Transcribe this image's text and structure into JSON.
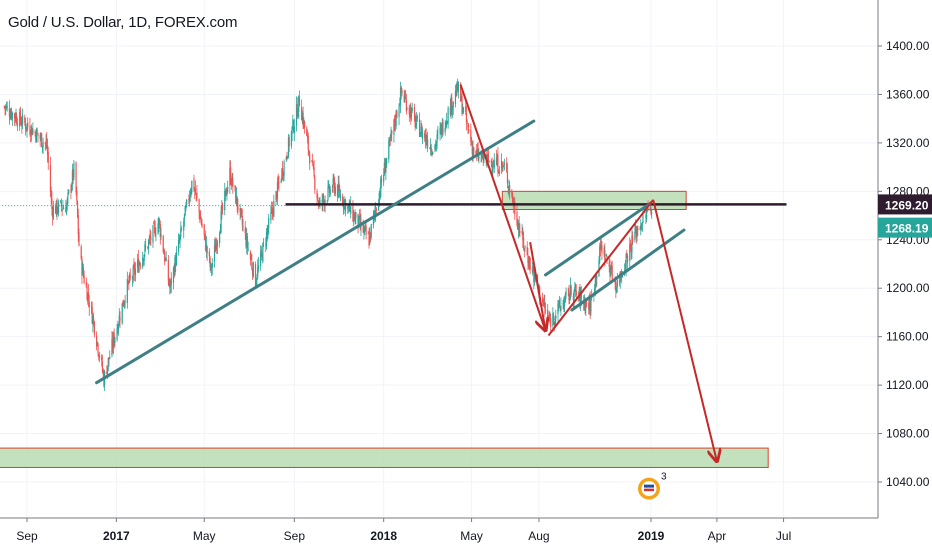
{
  "chart_data": {
    "type": "candlestick",
    "title": "Gold / U.S. Dollar, 1D, FOREX.com",
    "ylim": [
      1010,
      1440
    ],
    "y_ticks": [
      1040,
      1080,
      1120,
      1160,
      1200,
      1240,
      1280,
      1320,
      1360,
      1400
    ],
    "y_tick_labels": [
      "1040.00",
      "1080.00",
      "1120.00",
      "1160.00",
      "1200.00",
      "1240.00",
      "1280.00",
      "1320.00",
      "1360.00",
      "1400.00"
    ],
    "x_ticks": [
      {
        "label": "Sep",
        "date": "2016-09-01",
        "bold": false
      },
      {
        "label": "2017",
        "date": "2017-01-01",
        "bold": true
      },
      {
        "label": "May",
        "date": "2017-05-01",
        "bold": false
      },
      {
        "label": "Sep",
        "date": "2017-09-01",
        "bold": false
      },
      {
        "label": "2018",
        "date": "2018-01-01",
        "bold": true
      },
      {
        "label": "May",
        "date": "2018-05-01",
        "bold": false
      },
      {
        "label": "Aug",
        "date": "2018-08-01",
        "bold": false
      },
      {
        "label": "2019",
        "date": "2019-01-01",
        "bold": true
      },
      {
        "label": "Apr",
        "date": "2019-04-01",
        "bold": false
      },
      {
        "label": "Jul",
        "date": "2019-07-01",
        "bold": false
      }
    ],
    "price_labels": [
      {
        "value": 1269.2,
        "text": "1269.20",
        "color": "#2f1c2e"
      },
      {
        "value": 1268.19,
        "text": "1268.19",
        "color": "#26a69a"
      }
    ],
    "series_colors": {
      "up": "#26a69a",
      "down": "#ef5350"
    },
    "price_path": [
      {
        "date": "2016-08-01",
        "close": 1350
      },
      {
        "date": "2016-08-20",
        "close": 1340
      },
      {
        "date": "2016-09-10",
        "close": 1330
      },
      {
        "date": "2016-09-28",
        "close": 1318
      },
      {
        "date": "2016-10-05",
        "close": 1265
      },
      {
        "date": "2016-10-25",
        "close": 1268
      },
      {
        "date": "2016-11-05",
        "close": 1300
      },
      {
        "date": "2016-11-12",
        "close": 1225
      },
      {
        "date": "2016-12-01",
        "close": 1172
      },
      {
        "date": "2016-12-15",
        "close": 1125
      },
      {
        "date": "2017-01-15",
        "close": 1200
      },
      {
        "date": "2017-02-28",
        "close": 1255
      },
      {
        "date": "2017-03-15",
        "close": 1200
      },
      {
        "date": "2017-04-15",
        "close": 1290
      },
      {
        "date": "2017-05-10",
        "close": 1215
      },
      {
        "date": "2017-06-05",
        "close": 1295
      },
      {
        "date": "2017-07-10",
        "close": 1207
      },
      {
        "date": "2017-09-08",
        "close": 1355
      },
      {
        "date": "2017-10-05",
        "close": 1268
      },
      {
        "date": "2017-10-25",
        "close": 1285
      },
      {
        "date": "2017-12-12",
        "close": 1240
      },
      {
        "date": "2018-01-25",
        "close": 1362
      },
      {
        "date": "2018-02-15",
        "close": 1335
      },
      {
        "date": "2018-03-10",
        "close": 1315
      },
      {
        "date": "2018-04-12",
        "close": 1365
      },
      {
        "date": "2018-05-05",
        "close": 1310
      },
      {
        "date": "2018-06-15",
        "close": 1300
      },
      {
        "date": "2018-07-10",
        "close": 1238
      },
      {
        "date": "2018-08-15",
        "close": 1172
      },
      {
        "date": "2018-09-15",
        "close": 1198
      },
      {
        "date": "2018-10-10",
        "close": 1185
      },
      {
        "date": "2018-10-25",
        "close": 1235
      },
      {
        "date": "2018-11-15",
        "close": 1202
      },
      {
        "date": "2018-12-10",
        "close": 1245
      },
      {
        "date": "2019-01-02",
        "close": 1269
      }
    ],
    "drawings": {
      "hlines": [
        {
          "name": "resistance-line",
          "x1": "2017-08-20",
          "x2": "2019-07-05",
          "y": 1269.2,
          "color": "#2f1c2e"
        },
        {
          "name": "current-price-line",
          "x1": "2016-07-25",
          "x2": "2019-01-02",
          "y": 1268.19,
          "color": "#26a69a",
          "dotted": true
        }
      ],
      "zones": [
        {
          "name": "resistance-zone",
          "x1": "2018-06-12",
          "x2": "2019-02-18",
          "y1": 1265,
          "y2": 1280
        },
        {
          "name": "target-zone",
          "x1": "2016-07-25",
          "x2": "2019-06-10",
          "y1": 1052,
          "y2": 1068
        }
      ],
      "trendlines": [
        {
          "name": "major-uptrend-line",
          "from": {
            "date": "2016-12-05",
            "value": 1122
          },
          "to": {
            "date": "2018-07-25",
            "value": 1338
          }
        },
        {
          "name": "channel-upper-line",
          "from": {
            "date": "2018-08-10",
            "value": 1211
          },
          "to": {
            "date": "2018-12-31",
            "value": 1270
          }
        },
        {
          "name": "channel-lower-line",
          "from": {
            "date": "2018-09-15",
            "value": 1182
          },
          "to": {
            "date": "2019-02-15",
            "value": 1248
          }
        }
      ],
      "arrows": [
        {
          "name": "drop-arrow-1",
          "points": [
            {
              "date": "2018-04-16",
              "value": 1368
            },
            {
              "date": "2018-08-10",
              "value": 1165
            }
          ]
        },
        {
          "name": "drop-arrow-2",
          "points": [
            {
              "date": "2018-08-10",
              "value": 1165
            },
            {
              "date": "2018-07-20",
              "value": 1238
            }
          ]
        },
        {
          "name": "channel-bounce-arrow",
          "points": [
            {
              "date": "2018-08-14",
              "value": 1161
            },
            {
              "date": "2019-01-04",
              "value": 1273
            }
          ]
        },
        {
          "name": "forecast-arrow",
          "points": [
            {
              "date": "2019-01-04",
              "value": 1273
            },
            {
              "date": "2019-04-01",
              "value": 1057
            }
          ]
        }
      ]
    },
    "marker_badge": {
      "date": "2019-01-01",
      "value": 1037,
      "count": "3"
    }
  }
}
